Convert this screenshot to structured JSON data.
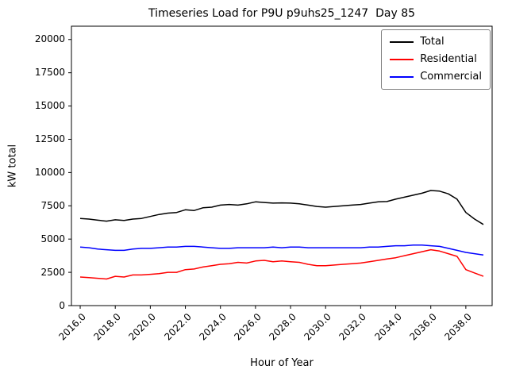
{
  "chart_data": {
    "type": "line",
    "title": "Timeseries Load for P9U p9uhs25_1247  Day 85",
    "xlabel": "Hour of Year",
    "ylabel": "kW total",
    "xlim": [
      2015.5,
      2039.5
    ],
    "ylim": [
      0,
      21000
    ],
    "grid": false,
    "legend_position": "upper right",
    "x_ticks": [
      2016,
      2018,
      2020,
      2022,
      2024,
      2026,
      2028,
      2030,
      2032,
      2034,
      2036,
      2038
    ],
    "x_tick_labels": [
      "2016.0",
      "2018.0",
      "2020.0",
      "2022.0",
      "2024.0",
      "2026.0",
      "2028.0",
      "2030.0",
      "2032.0",
      "2034.0",
      "2036.0",
      "2038.0"
    ],
    "y_ticks": [
      0,
      2500,
      5000,
      7500,
      10000,
      12500,
      15000,
      17500,
      20000
    ],
    "y_tick_labels": [
      "0",
      "2500",
      "5000",
      "7500",
      "10000",
      "12500",
      "15000",
      "17500",
      "20000"
    ],
    "x": [
      2016.0,
      2016.5,
      2017.0,
      2017.5,
      2018.0,
      2018.5,
      2019.0,
      2019.5,
      2020.0,
      2020.5,
      2021.0,
      2021.5,
      2022.0,
      2022.5,
      2023.0,
      2023.5,
      2024.0,
      2024.5,
      2025.0,
      2025.5,
      2026.0,
      2026.5,
      2027.0,
      2027.5,
      2028.0,
      2028.5,
      2029.0,
      2029.5,
      2030.0,
      2030.5,
      2031.0,
      2031.5,
      2032.0,
      2032.5,
      2033.0,
      2033.5,
      2034.0,
      2034.5,
      2035.0,
      2035.5,
      2036.0,
      2036.5,
      2037.0,
      2037.5,
      2038.0,
      2038.5,
      2039.0
    ],
    "series": [
      {
        "name": "Total",
        "color": "#000000",
        "values": [
          6550,
          6500,
          6420,
          6350,
          6450,
          6400,
          6500,
          6550,
          6700,
          6850,
          6950,
          7000,
          7200,
          7150,
          7350,
          7400,
          7550,
          7600,
          7550,
          7650,
          7800,
          7750,
          7700,
          7720,
          7700,
          7650,
          7550,
          7450,
          7400,
          7450,
          7500,
          7550,
          7600,
          7700,
          7800,
          7820,
          8000,
          8150,
          8300,
          8450,
          8650,
          8600,
          8400,
          8000,
          7000,
          6500,
          6100
        ]
      },
      {
        "name": "Residential",
        "color": "#ff0000",
        "values": [
          2150,
          2100,
          2050,
          2000,
          2200,
          2150,
          2300,
          2300,
          2350,
          2400,
          2500,
          2500,
          2700,
          2750,
          2900,
          3000,
          3100,
          3150,
          3250,
          3200,
          3350,
          3400,
          3300,
          3350,
          3300,
          3250,
          3100,
          3000,
          3000,
          3050,
          3100,
          3150,
          3200,
          3300,
          3400,
          3500,
          3600,
          3750,
          3900,
          4050,
          4200,
          4100,
          3900,
          3700,
          2700,
          2450,
          2200
        ]
      },
      {
        "name": "Commercial",
        "color": "#0000ff",
        "values": [
          4400,
          4350,
          4250,
          4200,
          4150,
          4150,
          4250,
          4300,
          4300,
          4350,
          4400,
          4400,
          4450,
          4450,
          4400,
          4350,
          4300,
          4300,
          4350,
          4350,
          4350,
          4350,
          4400,
          4350,
          4400,
          4400,
          4350,
          4350,
          4350,
          4350,
          4350,
          4350,
          4350,
          4400,
          4400,
          4450,
          4500,
          4500,
          4550,
          4550,
          4500,
          4450,
          4300,
          4150,
          4000,
          3900,
          3800
        ]
      }
    ]
  }
}
